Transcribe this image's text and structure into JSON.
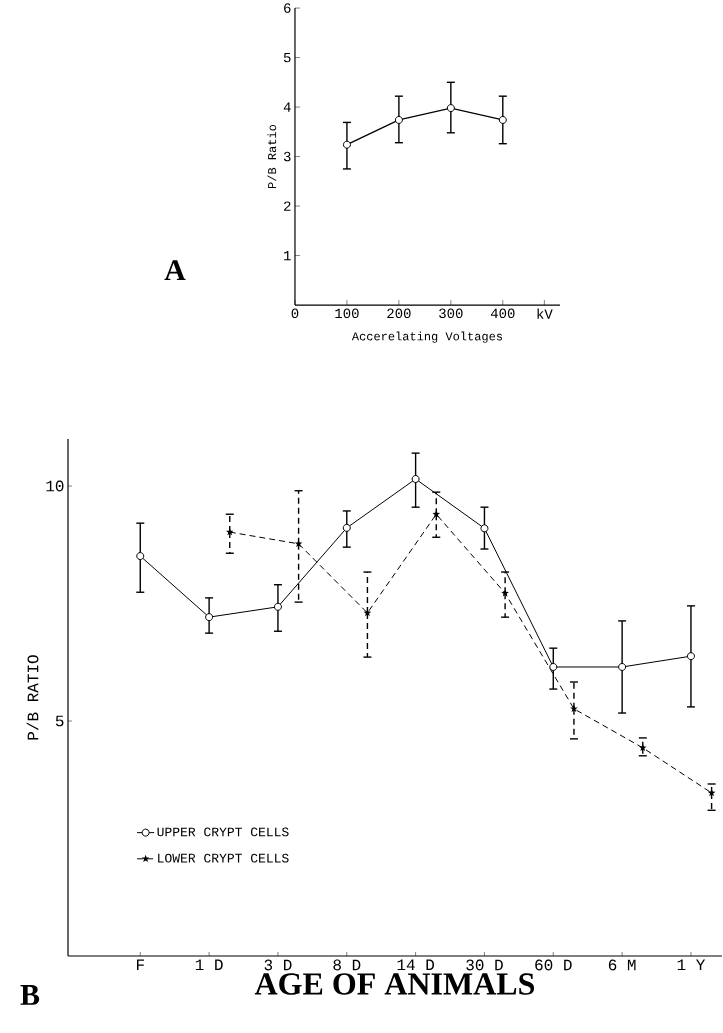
{
  "chart_data": [
    {
      "type": "line",
      "xlabel": "Accerelating Voltages",
      "ylabel": "P/B Ratio",
      "annotations": [
        "A"
      ],
      "x": [
        100,
        200,
        300,
        400
      ],
      "xlim": [
        0,
        510
      ],
      "ylim": [
        0,
        6
      ],
      "xticks": [
        0,
        100,
        200,
        300,
        400,
        {
          "value": 480,
          "label": "kV"
        }
      ],
      "yticks": [
        1,
        2,
        3,
        4,
        5,
        6
      ],
      "marker": "circle",
      "line_style": "solid",
      "color": "#000000",
      "values": [
        3.24,
        3.74,
        3.98,
        3.74
      ],
      "errors": [
        [
          2.75,
          3.69
        ],
        [
          3.28,
          4.22
        ],
        [
          3.48,
          4.5
        ],
        [
          3.26,
          4.22
        ]
      ]
    },
    {
      "type": "line",
      "xlabel": "AGE OF ANIMALS",
      "ylabel": "P/B RATIO",
      "annotations": [
        "B"
      ],
      "categories": [
        "F",
        "1 D",
        "3 D",
        "8 D",
        "14 D",
        "30 D",
        "60 D",
        "6 M",
        "1 Y"
      ],
      "ylim": [
        0,
        11
      ],
      "yticks": [
        5,
        10
      ],
      "legend": "bottom left",
      "series": [
        {
          "name": "UPPER CRYPT CELLS",
          "color": "#000000",
          "marker": "circle",
          "line_style": "solid",
          "values": [
            8.51,
            7.21,
            7.43,
            9.11,
            10.15,
            9.1,
            6.15,
            6.15,
            6.38
          ],
          "errors": [
            [
              7.74,
              9.21
            ],
            [
              6.87,
              7.62
            ],
            [
              6.91,
              7.9
            ],
            [
              8.7,
              9.47
            ],
            [
              9.55,
              10.7
            ],
            [
              8.66,
              9.55
            ],
            [
              5.68,
              6.55
            ],
            [
              5.17,
              7.13
            ],
            [
              5.3,
              7.45
            ]
          ]
        },
        {
          "name": "LOWER CRYPT CELLS",
          "color": "#000000",
          "marker": "star",
          "line_style": "dashed",
          "values": [
            null,
            9.02,
            8.77,
            7.3,
            9.4,
            7.72,
            5.26,
            4.43,
            3.47
          ],
          "errors": [
            null,
            [
              8.57,
              9.4
            ],
            [
              7.53,
              9.9
            ],
            [
              6.36,
              8.17
            ],
            [
              8.91,
              9.87
            ],
            [
              7.21,
              8.17
            ],
            [
              4.62,
              5.83
            ],
            [
              4.26,
              4.64
            ],
            [
              3.1,
              3.66
            ]
          ]
        }
      ]
    }
  ]
}
